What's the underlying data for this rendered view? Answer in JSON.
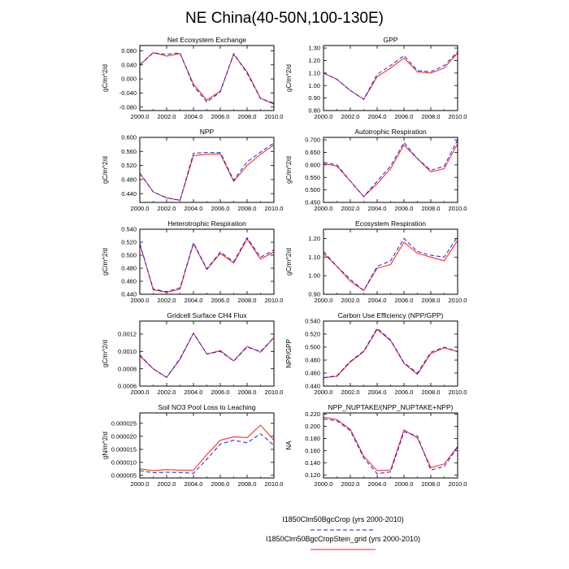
{
  "title": "NE China(40-50N,100-130E)",
  "colors": {
    "series_a": "#1f1fd6",
    "series_b": "#ff1a1a"
  },
  "legend": [
    {
      "label": "I1850Clm50BgcCrop (yrs 2000-2010)",
      "style": "dashed",
      "color": "#1f1fd6"
    },
    {
      "label": "I1850Clm50BgcCropStein_grid (yrs 2000-2010)",
      "style": "solid",
      "color": "#ff1a1a"
    }
  ],
  "chart_data": [
    {
      "type": "line",
      "title": "Net Ecosystem Exchange",
      "ylabel": "gC/m^2/d",
      "x": [
        2000,
        2001,
        2002,
        2003,
        2004,
        2005,
        2006,
        2007,
        2008,
        2009,
        2010
      ],
      "xlim": [
        2000,
        2010
      ],
      "xticks": [
        "2000.0",
        "2002.0",
        "2004.0",
        "2006.0",
        "2008.0",
        "2010.0"
      ],
      "ylim": [
        -0.09,
        0.095
      ],
      "yticks": [
        -0.08,
        -0.04,
        0.0,
        0.04,
        0.08
      ],
      "yticklabels": [
        "-0.080",
        "-0.040",
        "0.000",
        "0.040",
        "0.080"
      ],
      "series": [
        {
          "values": [
            0.04,
            0.074,
            0.07,
            0.074,
            -0.02,
            -0.066,
            -0.037,
            0.072,
            0.016,
            -0.056,
            -0.069
          ]
        },
        {
          "values": [
            0.04,
            0.075,
            0.065,
            0.072,
            -0.015,
            -0.06,
            -0.035,
            0.07,
            0.02,
            -0.055,
            -0.072
          ]
        }
      ]
    },
    {
      "type": "line",
      "title": "GPP",
      "ylabel": "gC/m^2/d",
      "x": [
        2000,
        2001,
        2002,
        2003,
        2004,
        2005,
        2006,
        2007,
        2008,
        2009,
        2010
      ],
      "xlim": [
        2000,
        2010
      ],
      "xticks": [
        "2000.0",
        "2002.0",
        "2004.0",
        "2006.0",
        "2008.0",
        "2010.0"
      ],
      "ylim": [
        0.8,
        1.32
      ],
      "yticks": [
        0.8,
        0.9,
        1.0,
        1.1,
        1.2,
        1.3
      ],
      "yticklabels": [
        "0.80",
        "0.90",
        "1.00",
        "1.10",
        "1.20",
        "1.30"
      ],
      "series": [
        {
          "values": [
            1.1,
            1.05,
            0.96,
            0.89,
            1.09,
            1.16,
            1.24,
            1.12,
            1.11,
            1.16,
            1.27
          ]
        },
        {
          "values": [
            1.1,
            1.05,
            0.96,
            0.89,
            1.07,
            1.14,
            1.22,
            1.11,
            1.1,
            1.14,
            1.26
          ]
        }
      ]
    },
    {
      "type": "line",
      "title": "NPP",
      "ylabel": "gC/m^2/d",
      "x": [
        2000,
        2001,
        2002,
        2003,
        2004,
        2005,
        2006,
        2007,
        2008,
        2009,
        2010
      ],
      "xlim": [
        2000,
        2010
      ],
      "xticks": [
        "2000.0",
        "2002.0",
        "2004.0",
        "2006.0",
        "2008.0",
        "2010.0"
      ],
      "ylim": [
        0.415,
        0.6
      ],
      "yticks": [
        0.44,
        0.48,
        0.52,
        0.56,
        0.6
      ],
      "yticklabels": [
        "0.440",
        "0.480",
        "0.520",
        "0.560",
        "0.600"
      ],
      "series": [
        {
          "values": [
            0.498,
            0.445,
            0.428,
            0.421,
            0.555,
            0.557,
            0.557,
            0.478,
            0.53,
            0.558,
            0.584
          ]
        },
        {
          "values": [
            0.498,
            0.445,
            0.428,
            0.421,
            0.548,
            0.552,
            0.553,
            0.475,
            0.52,
            0.552,
            0.578
          ]
        }
      ]
    },
    {
      "type": "line",
      "title": "Autotrophic Respiration",
      "ylabel": "gC/m^2/d",
      "x": [
        2000,
        2001,
        2002,
        2003,
        2004,
        2005,
        2006,
        2007,
        2008,
        2009,
        2010
      ],
      "xlim": [
        2000,
        2010
      ],
      "xticks": [
        "2000.0",
        "2002.0",
        "2004.0",
        "2006.0",
        "2008.0",
        "2010.0"
      ],
      "ylim": [
        0.45,
        0.71
      ],
      "yticks": [
        0.45,
        0.5,
        0.55,
        0.6,
        0.65,
        0.7
      ],
      "yticklabels": [
        "0.450",
        "0.500",
        "0.550",
        "0.600",
        "0.650",
        "0.700"
      ],
      "series": [
        {
          "values": [
            0.61,
            0.6,
            0.535,
            0.473,
            0.535,
            0.595,
            0.69,
            0.625,
            0.578,
            0.595,
            0.7
          ]
        },
        {
          "values": [
            0.605,
            0.595,
            0.535,
            0.473,
            0.525,
            0.585,
            0.68,
            0.625,
            0.572,
            0.585,
            0.685
          ]
        }
      ]
    },
    {
      "type": "line",
      "title": "Heterotrophic Respiration",
      "ylabel": "gC/m^2/d",
      "x": [
        2000,
        2001,
        2002,
        2003,
        2004,
        2005,
        2006,
        2007,
        2008,
        2009,
        2010
      ],
      "xlim": [
        2000,
        2010
      ],
      "xticks": [
        "2000.0",
        "2002.0",
        "2004.0",
        "2006.0",
        "2008.0",
        "2010.0"
      ],
      "ylim": [
        0.44,
        0.54
      ],
      "yticks": [
        0.44,
        0.46,
        0.48,
        0.5,
        0.52,
        0.54
      ],
      "yticklabels": [
        "0.440",
        "0.460",
        "0.480",
        "0.500",
        "0.520",
        "0.540"
      ],
      "series": [
        {
          "values": [
            0.518,
            0.448,
            0.444,
            0.45,
            0.519,
            0.479,
            0.505,
            0.49,
            0.527,
            0.497,
            0.508
          ]
        },
        {
          "values": [
            0.518,
            0.447,
            0.443,
            0.448,
            0.518,
            0.478,
            0.503,
            0.488,
            0.525,
            0.494,
            0.505
          ]
        }
      ]
    },
    {
      "type": "line",
      "title": "Ecosystem Respiration",
      "ylabel": "gC/m^2/d",
      "x": [
        2000,
        2001,
        2002,
        2003,
        2004,
        2005,
        2006,
        2007,
        2008,
        2009,
        2010
      ],
      "xlim": [
        2000,
        2010
      ],
      "xticks": [
        "2000.0",
        "2002.0",
        "2004.0",
        "2006.0",
        "2008.0",
        "2010.0"
      ],
      "ylim": [
        0.9,
        1.25
      ],
      "yticks": [
        0.9,
        1.0,
        1.1,
        1.2
      ],
      "yticklabels": [
        "0.90",
        "1.00",
        "1.10",
        "1.20"
      ],
      "series": [
        {
          "values": [
            1.13,
            1.05,
            0.98,
            0.92,
            1.05,
            1.08,
            1.2,
            1.13,
            1.11,
            1.1,
            1.21
          ]
        },
        {
          "values": [
            1.12,
            1.05,
            0.97,
            0.92,
            1.04,
            1.06,
            1.18,
            1.12,
            1.1,
            1.08,
            1.19
          ]
        }
      ]
    },
    {
      "type": "line",
      "title": "Gridcell Surface CH4 Flux",
      "ylabel": "gC/m^2/d",
      "x": [
        2000,
        2001,
        2002,
        2003,
        2004,
        2005,
        2006,
        2007,
        2008,
        2009,
        2010
      ],
      "xlim": [
        2000,
        2010
      ],
      "xticks": [
        "2000.0",
        "2002.0",
        "2004.0",
        "2006.0",
        "2008.0",
        "2010.0"
      ],
      "ylim": [
        0.0006,
        0.00135
      ],
      "yticks": [
        0.0006,
        0.0008,
        0.001,
        0.0012
      ],
      "yticklabels": [
        "0.0006",
        "0.0008",
        "0.0010",
        "0.0012"
      ],
      "series": [
        {
          "values": [
            0.00096,
            0.0008,
            0.0007,
            0.00092,
            0.00121,
            0.00097,
            0.001,
            0.00089,
            0.00105,
            0.001,
            0.00116
          ]
        },
        {
          "values": [
            0.00095,
            0.0008,
            0.0007,
            0.00091,
            0.00121,
            0.00097,
            0.00101,
            0.00089,
            0.00106,
            0.00099,
            0.00116
          ]
        }
      ]
    },
    {
      "type": "line",
      "title": "Carbon Use Efficiency (NPP/GPP)",
      "ylabel": "NPP/GPP",
      "x": [
        2000,
        2001,
        2002,
        2003,
        2004,
        2005,
        2006,
        2007,
        2008,
        2009,
        2010
      ],
      "xlim": [
        2000,
        2010
      ],
      "xticks": [
        "2000.0",
        "2002.0",
        "2004.0",
        "2006.0",
        "2008.0",
        "2010.0"
      ],
      "ylim": [
        0.44,
        0.54
      ],
      "yticks": [
        0.44,
        0.46,
        0.48,
        0.5,
        0.52,
        0.54
      ],
      "yticklabels": [
        "0.440",
        "0.460",
        "0.480",
        "0.500",
        "0.520",
        "0.540"
      ],
      "series": [
        {
          "values": [
            0.453,
            0.456,
            0.478,
            0.494,
            0.529,
            0.511,
            0.476,
            0.46,
            0.492,
            0.5,
            0.493
          ]
        },
        {
          "values": [
            0.453,
            0.455,
            0.477,
            0.493,
            0.527,
            0.51,
            0.475,
            0.458,
            0.49,
            0.499,
            0.493
          ]
        }
      ]
    },
    {
      "type": "line",
      "title": "Soil NO3 Pool Loss to Leaching",
      "ylabel": "gN/m^2/d",
      "x": [
        2000,
        2001,
        2002,
        2003,
        2004,
        2005,
        2006,
        2007,
        2008,
        2009,
        2010
      ],
      "xlim": [
        2000,
        2010
      ],
      "xticks": [
        "2000.0",
        "2002.0",
        "2004.0",
        "2006.0",
        "2008.0",
        "2010.0"
      ],
      "ylim": [
        4e-06,
        2.9e-05
      ],
      "yticks": [
        5e-06,
        1e-05,
        1.5e-05,
        2e-05,
        2.5e-05
      ],
      "yticklabels": [
        "0.000005",
        "0.000010",
        "0.000015",
        "0.000020",
        "0.000025"
      ],
      "series": [
        {
          "values": [
            6.8e-06,
            6e-06,
            6.2e-06,
            6.1e-06,
            5.8e-06,
            1.12e-05,
            1.7e-05,
            1.85e-05,
            1.75e-05,
            2.1e-05,
            1.65e-05
          ]
        },
        {
          "values": [
            7.5e-06,
            6.8e-06,
            7.2e-06,
            7e-06,
            7e-06,
            1.3e-05,
            1.85e-05,
            1.98e-05,
            1.95e-05,
            2.43e-05,
            1.85e-05
          ]
        }
      ]
    },
    {
      "type": "line",
      "title": "NPP_NUPTAKE/(NPP_NUPTAKE+NPP)",
      "ylabel": "NA",
      "x": [
        2000,
        2001,
        2002,
        2003,
        2004,
        2005,
        2006,
        2007,
        2008,
        2009,
        2010
      ],
      "xlim": [
        2000,
        2010
      ],
      "xticks": [
        "2000.0",
        "2002.0",
        "2004.0",
        "2006.0",
        "2008.0",
        "2010.0"
      ],
      "ylim": [
        0.115,
        0.222
      ],
      "yticks": [
        0.12,
        0.14,
        0.16,
        0.18,
        0.2,
        0.22
      ],
      "yticklabels": [
        "0.120",
        "0.140",
        "0.160",
        "0.180",
        "0.200",
        "0.220"
      ],
      "series": [
        {
          "values": [
            0.212,
            0.209,
            0.193,
            0.148,
            0.122,
            0.125,
            0.191,
            0.184,
            0.128,
            0.134,
            0.166
          ]
        },
        {
          "values": [
            0.215,
            0.211,
            0.195,
            0.151,
            0.127,
            0.128,
            0.194,
            0.181,
            0.132,
            0.138,
            0.167
          ]
        }
      ]
    }
  ]
}
